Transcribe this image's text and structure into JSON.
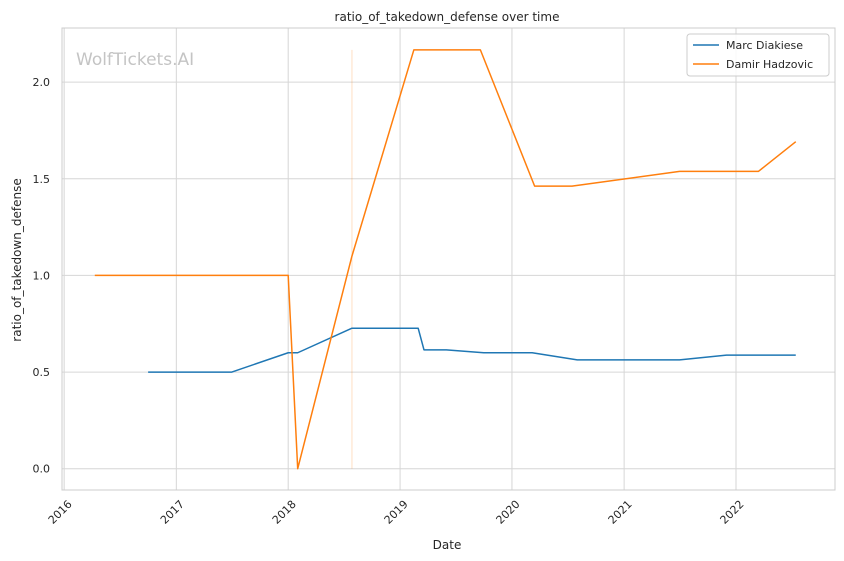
{
  "chart_data": {
    "type": "line",
    "title": "ratio_of_takedown_defense over time",
    "xlabel": "Date",
    "ylabel": "ratio_of_takedown_defense",
    "watermark": "WolfTickets.AI",
    "x_ticks": [
      "2016",
      "2017",
      "2018",
      "2019",
      "2020",
      "2021",
      "2022"
    ],
    "y_ticks": [
      "0.0",
      "0.5",
      "1.0",
      "1.5",
      "2.0"
    ],
    "xlim": [
      "2015-12-25",
      "2022-11-20"
    ],
    "ylim": [
      -0.11,
      2.28
    ],
    "grid": true,
    "legend_position": "top-right",
    "colors": {
      "Marc Diakiese": "#1f77b4",
      "Damir Hadzovic": "#ff7f0e",
      "grid": "#d6d6d6",
      "spine": "#cccccc"
    },
    "series": [
      {
        "name": "Marc Diakiese",
        "points": [
          [
            "2016-10-01",
            0.5
          ],
          [
            "2017-07-01",
            0.5
          ],
          [
            "2018-01-01",
            0.6
          ],
          [
            "2018-02-01",
            0.6
          ],
          [
            "2018-07-28",
            0.727
          ],
          [
            "2019-03-01",
            0.727
          ],
          [
            "2019-03-20",
            0.615
          ],
          [
            "2019-06-01",
            0.615
          ],
          [
            "2019-10-01",
            0.6
          ],
          [
            "2020-03-07",
            0.6
          ],
          [
            "2020-08-01",
            0.563
          ],
          [
            "2021-07-01",
            0.563
          ],
          [
            "2021-12-01",
            0.588
          ],
          [
            "2022-07-15",
            0.588
          ]
        ]
      },
      {
        "name": "Damir Hadzovic",
        "points": [
          [
            "2016-04-10",
            1.0
          ],
          [
            "2018-01-01",
            1.0
          ],
          [
            "2018-02-01",
            0.0
          ],
          [
            "2018-07-28",
            1.1
          ],
          [
            "2019-02-15",
            2.167
          ],
          [
            "2019-09-20",
            2.167
          ],
          [
            "2020-03-15",
            1.462
          ],
          [
            "2020-07-15",
            1.462
          ],
          [
            "2021-07-01",
            1.538
          ],
          [
            "2022-03-15",
            1.538
          ],
          [
            "2022-07-15",
            1.692
          ]
        ]
      }
    ],
    "vertical_markers": [
      {
        "x": "2018-07-28",
        "y_range": [
          0.0,
          2.167
        ],
        "color": "#ff7f0e"
      }
    ]
  }
}
